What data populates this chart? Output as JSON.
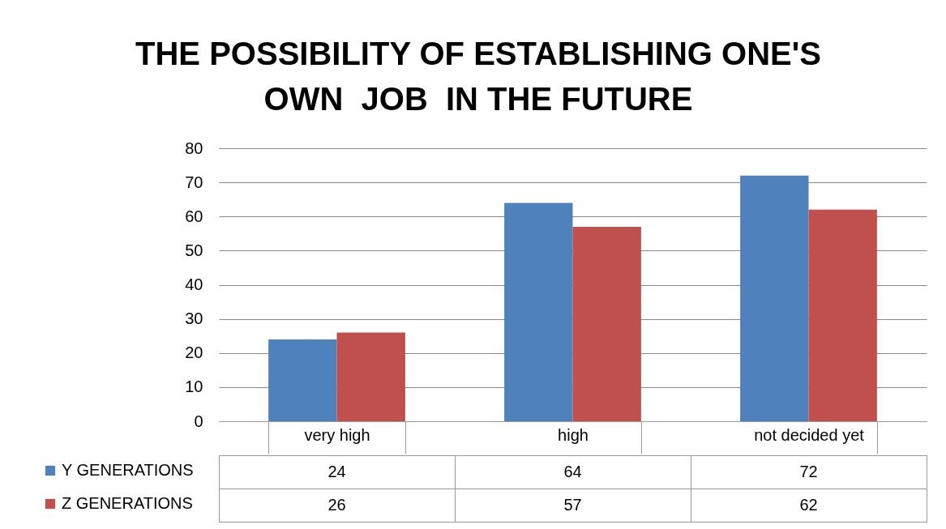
{
  "chart_data": {
    "type": "bar",
    "title": "THE POSSIBILITY OF ESTABLISHING ONE'S OWN  JOB  IN THE FUTURE",
    "categories": [
      "very high",
      "high",
      "not decided yet"
    ],
    "series": [
      {
        "name": "Y GENERATIONS",
        "color": "#4f81bd",
        "values": [
          24,
          64,
          72
        ]
      },
      {
        "name": "Z GENERATIONS",
        "color": "#c0504d",
        "values": [
          26,
          57,
          62
        ]
      }
    ],
    "ylim": [
      0,
      80
    ],
    "yticks": [
      0,
      10,
      20,
      30,
      40,
      50,
      60,
      70,
      80
    ],
    "grid": "y",
    "legend": "bottom left",
    "data_labels": true
  }
}
